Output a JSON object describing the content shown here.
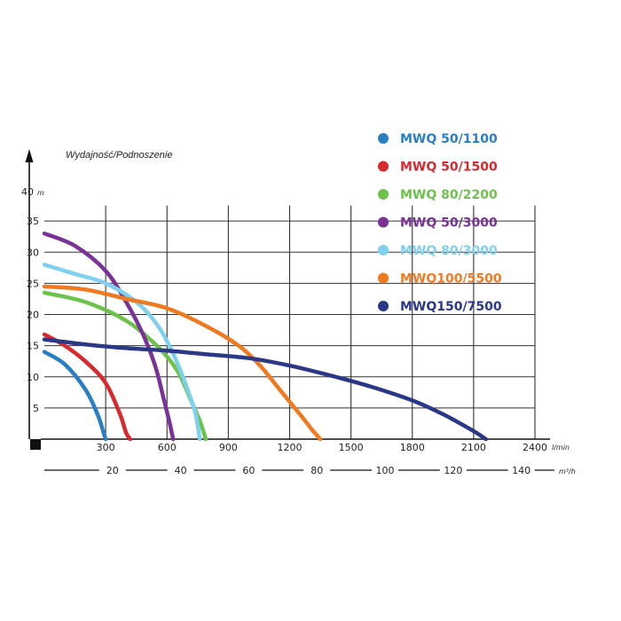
{
  "chart_data": {
    "type": "line",
    "ylabel": "Wydajność/Podnoszenie",
    "y_top_label": "40",
    "y_unit": "m",
    "x_unit": "l/min",
    "x2_unit": "m³/h",
    "xlim": [
      0,
      2400
    ],
    "ylim": [
      0,
      40
    ],
    "y_ticks": [
      "5",
      "10",
      "15",
      "20",
      "25",
      "30",
      "35"
    ],
    "x_ticks": [
      "300",
      "600",
      "900",
      "1200",
      "1500",
      "1800",
      "2100",
      "2400"
    ],
    "x2_ticks": [
      "20",
      "40",
      "60",
      "80",
      "100",
      "120",
      "140"
    ],
    "grid": true,
    "legend_position": "top-right",
    "series": [
      {
        "name": "MWQ 50/1100",
        "color": "#2a7fc4",
        "x": [
          0,
          100,
          200,
          260,
          290,
          300
        ],
        "y": [
          14,
          12,
          8,
          4,
          1,
          0
        ]
      },
      {
        "name": "MWQ 50/1500",
        "color": "#d8292f",
        "x": [
          0,
          100,
          200,
          300,
          370,
          400,
          420
        ],
        "y": [
          16.8,
          15,
          12.5,
          9,
          4,
          1,
          0
        ]
      },
      {
        "name": "MWQ 80/2200",
        "color": "#6cc24a",
        "x": [
          0,
          200,
          400,
          550,
          650,
          720,
          760,
          790
        ],
        "y": [
          23.5,
          22,
          19,
          15,
          11,
          6,
          3,
          0
        ]
      },
      {
        "name": "MWQ 50/3000",
        "color": "#7a3296",
        "x": [
          0,
          150,
          300,
          400,
          480,
          540,
          580,
          610,
          630
        ],
        "y": [
          33,
          31,
          27,
          22,
          17,
          12,
          7,
          3,
          0
        ]
      },
      {
        "name": "MWQ 80/3000",
        "color": "#7fd0ee",
        "x": [
          0,
          150,
          300,
          450,
          560,
          640,
          700,
          740,
          760
        ],
        "y": [
          28,
          26.5,
          25,
          22,
          18,
          13,
          8,
          4,
          0
        ]
      },
      {
        "name": "MWQ100/5500",
        "color": "#ef7a22",
        "x": [
          0,
          200,
          400,
          600,
          800,
          950,
          1050,
          1150,
          1250,
          1310,
          1350
        ],
        "y": [
          24.5,
          24,
          22.5,
          21,
          18,
          15,
          12,
          8,
          4,
          1.5,
          0
        ]
      },
      {
        "name": "MWQ150/7500",
        "color": "#2b3787",
        "x": [
          0,
          200,
          400,
          600,
          800,
          1000,
          1200,
          1400,
          1600,
          1800,
          1950,
          2100,
          2160
        ],
        "y": [
          16,
          15.2,
          14.6,
          14.2,
          13.6,
          13,
          11.8,
          10.2,
          8.4,
          6.2,
          4,
          1.3,
          0
        ]
      }
    ]
  }
}
